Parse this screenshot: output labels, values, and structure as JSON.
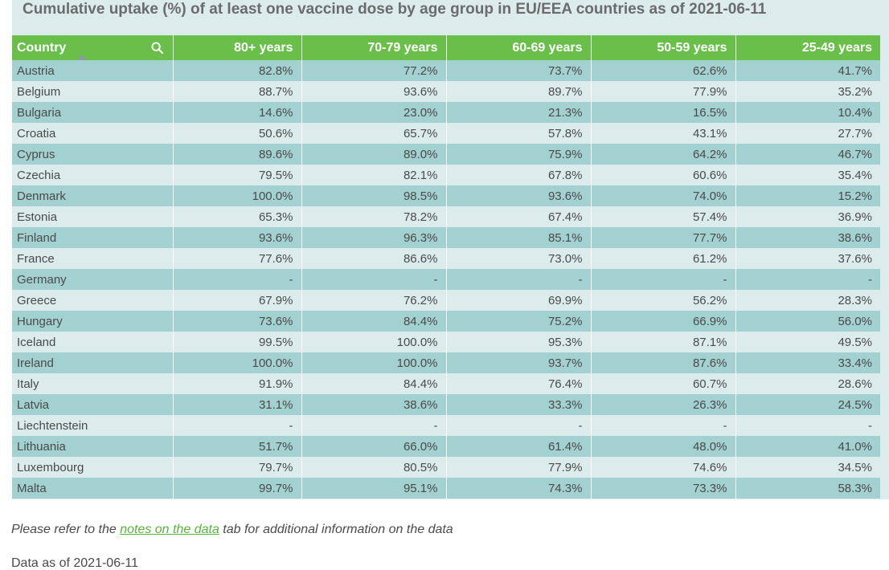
{
  "title": "Cumulative uptake (%) of at least one vaccine dose by age group in EU/EEA countries as of 2021-06-11",
  "colors": {
    "header": "#6abf4b",
    "row_odd": "#a3d0d1",
    "row_even": "#dcecec",
    "link": "#58b33d"
  },
  "chart_data": {
    "type": "table",
    "title": "Cumulative uptake (%) of at least one vaccine dose by age group in EU/EEA countries as of 2021-06-11",
    "columns": [
      "Country",
      "80+ years",
      "70-79 years",
      "60-69 years",
      "50-59 years",
      "25-49 years"
    ],
    "sort": {
      "column": "Country",
      "direction": "ascending"
    },
    "rows": [
      [
        "Austria",
        "82.8%",
        "77.2%",
        "73.7%",
        "62.6%",
        "41.7%"
      ],
      [
        "Belgium",
        "88.7%",
        "93.6%",
        "89.7%",
        "77.9%",
        "35.2%"
      ],
      [
        "Bulgaria",
        "14.6%",
        "23.0%",
        "21.3%",
        "16.5%",
        "10.4%"
      ],
      [
        "Croatia",
        "50.6%",
        "65.7%",
        "57.8%",
        "43.1%",
        "27.7%"
      ],
      [
        "Cyprus",
        "89.6%",
        "89.0%",
        "75.9%",
        "64.2%",
        "46.7%"
      ],
      [
        "Czechia",
        "79.5%",
        "82.1%",
        "67.8%",
        "60.6%",
        "35.4%"
      ],
      [
        "Denmark",
        "100.0%",
        "98.5%",
        "93.6%",
        "74.0%",
        "15.2%"
      ],
      [
        "Estonia",
        "65.3%",
        "78.2%",
        "67.4%",
        "57.4%",
        "36.9%"
      ],
      [
        "Finland",
        "93.6%",
        "96.3%",
        "85.1%",
        "77.7%",
        "38.6%"
      ],
      [
        "France",
        "77.6%",
        "86.6%",
        "73.0%",
        "61.2%",
        "37.6%"
      ],
      [
        "Germany",
        "-",
        "-",
        "-",
        "-",
        "-"
      ],
      [
        "Greece",
        "67.9%",
        "76.2%",
        "69.9%",
        "56.2%",
        "28.3%"
      ],
      [
        "Hungary",
        "73.6%",
        "84.4%",
        "75.2%",
        "66.9%",
        "56.0%"
      ],
      [
        "Iceland",
        "99.5%",
        "100.0%",
        "95.3%",
        "87.1%",
        "49.5%"
      ],
      [
        "Ireland",
        "100.0%",
        "100.0%",
        "93.7%",
        "87.6%",
        "33.4%"
      ],
      [
        "Italy",
        "91.9%",
        "84.4%",
        "76.4%",
        "60.7%",
        "28.6%"
      ],
      [
        "Latvia",
        "31.1%",
        "38.6%",
        "33.3%",
        "26.3%",
        "24.5%"
      ],
      [
        "Liechtenstein",
        "-",
        "-",
        "-",
        "-",
        "-"
      ],
      [
        "Lithuania",
        "51.7%",
        "66.0%",
        "61.4%",
        "48.0%",
        "41.0%"
      ],
      [
        "Luxembourg",
        "79.7%",
        "80.5%",
        "77.9%",
        "74.6%",
        "34.5%"
      ],
      [
        "Malta",
        "99.7%",
        "95.1%",
        "74.3%",
        "73.3%",
        "58.3%"
      ]
    ]
  },
  "note": {
    "before": "Please refer to the ",
    "link": "notes on the data",
    "after": " tab for additional information on the data"
  },
  "footer_cut": "Data as of 2021-06-11"
}
